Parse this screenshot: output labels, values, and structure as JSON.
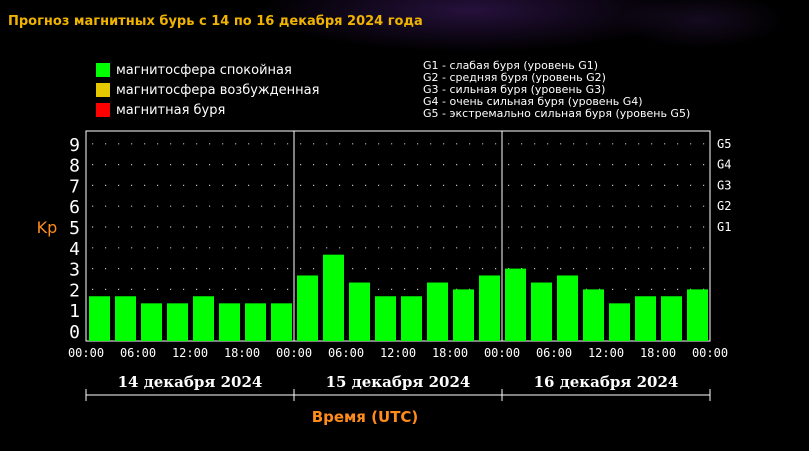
{
  "header": {
    "title": "Прогноз магнитных бурь с 14 по 16 декабря 2024 года"
  },
  "legend": {
    "states": [
      {
        "label": "магнитосфера спокойная",
        "color": "#00ff00"
      },
      {
        "label": "магнитосфера возбужденная",
        "color": "#e6c800"
      },
      {
        "label": "магнитная буря",
        "color": "#ff0000"
      }
    ],
    "g_scale": [
      "G1 - слабая буря (уровень G1)",
      "G2 - средняя буря (уровень G2)",
      "G3 - сильная буря (уровень G3)",
      "G4 - очень сильная буря (уровень G4)",
      "G5 - экстремально сильная буря (уровень G5)"
    ]
  },
  "chart_data": {
    "type": "bar",
    "ylabel": "Kp",
    "xlabel": "Время (UTC)",
    "ylim": [
      0,
      9
    ],
    "yticks": [
      "0",
      "1",
      "2",
      "3",
      "4",
      "5",
      "6",
      "7",
      "8",
      "9"
    ],
    "right_ticks": [
      {
        "value": 5,
        "label": "G1"
      },
      {
        "value": 6,
        "label": "G2"
      },
      {
        "value": 7,
        "label": "G3"
      },
      {
        "value": 8,
        "label": "G4"
      },
      {
        "value": 9,
        "label": "G5"
      }
    ],
    "xticks": [
      "00:00",
      "06:00",
      "12:00",
      "18:00",
      "00:00",
      "06:00",
      "12:00",
      "18:00",
      "00:00",
      "06:00",
      "12:00",
      "18:00",
      "00:00"
    ],
    "grid": "dotted",
    "bar_color": "#00ff00",
    "days": [
      {
        "label": "14 декабря 2024",
        "values": [
          1.67,
          1.67,
          1.33,
          1.33,
          1.67,
          1.33,
          1.33,
          1.33
        ]
      },
      {
        "label": "15 декабря 2024",
        "values": [
          2.67,
          3.67,
          2.33,
          1.67,
          1.67,
          2.33,
          2.0,
          2.67
        ]
      },
      {
        "label": "16 декабря 2024",
        "values": [
          3.0,
          2.33,
          2.67,
          2.0,
          1.33,
          1.67,
          1.67,
          2.0
        ]
      }
    ]
  }
}
